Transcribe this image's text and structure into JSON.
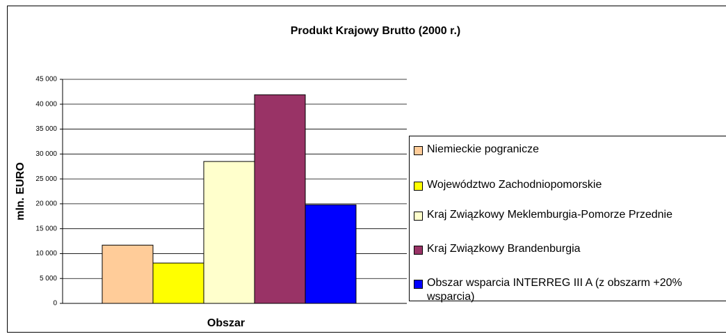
{
  "chart_data": {
    "type": "bar",
    "title": "Produkt Krajowy Brutto (2000 r.)",
    "x_label": "Obszar",
    "y_label": "mln. EURO",
    "categories": [
      null
    ],
    "series": [
      {
        "name": "Niemieckie pogranicze",
        "color": "#FFCC99",
        "values": [
          11700
        ]
      },
      {
        "name": "Województwo Zachodniopomorskie",
        "color": "#FFFF00",
        "values": [
          8100
        ]
      },
      {
        "name": "Kraj Związkowy Meklemburgia-Pomorze Przednie",
        "color": "#FFFFCC",
        "values": [
          28500
        ]
      },
      {
        "name": "Kraj Związkowy Brandenburgia",
        "color": "#993366",
        "values": [
          41900
        ]
      },
      {
        "name": "Obszar wsparcia INTERREG III A (z obszarm +20% wsparcia)",
        "color": "#0000FF",
        "values": [
          19800
        ]
      }
    ],
    "ylim": [
      0,
      45000
    ],
    "yticks": [
      0,
      {
        "value": 5000,
        "label": "5 000"
      },
      {
        "value": 10000,
        "label": "10 000"
      },
      {
        "value": 15000,
        "label": "15 000"
      },
      {
        "value": 20000,
        "label": "20 000"
      },
      {
        "value": 25000,
        "label": "25 000"
      },
      {
        "value": 30000,
        "label": "30 000"
      },
      {
        "value": 35000,
        "label": "35 000"
      },
      {
        "value": 40000,
        "label": "40 000"
      },
      {
        "value": 45000,
        "label": "45 000"
      }
    ],
    "grid": true,
    "legend": "right"
  }
}
